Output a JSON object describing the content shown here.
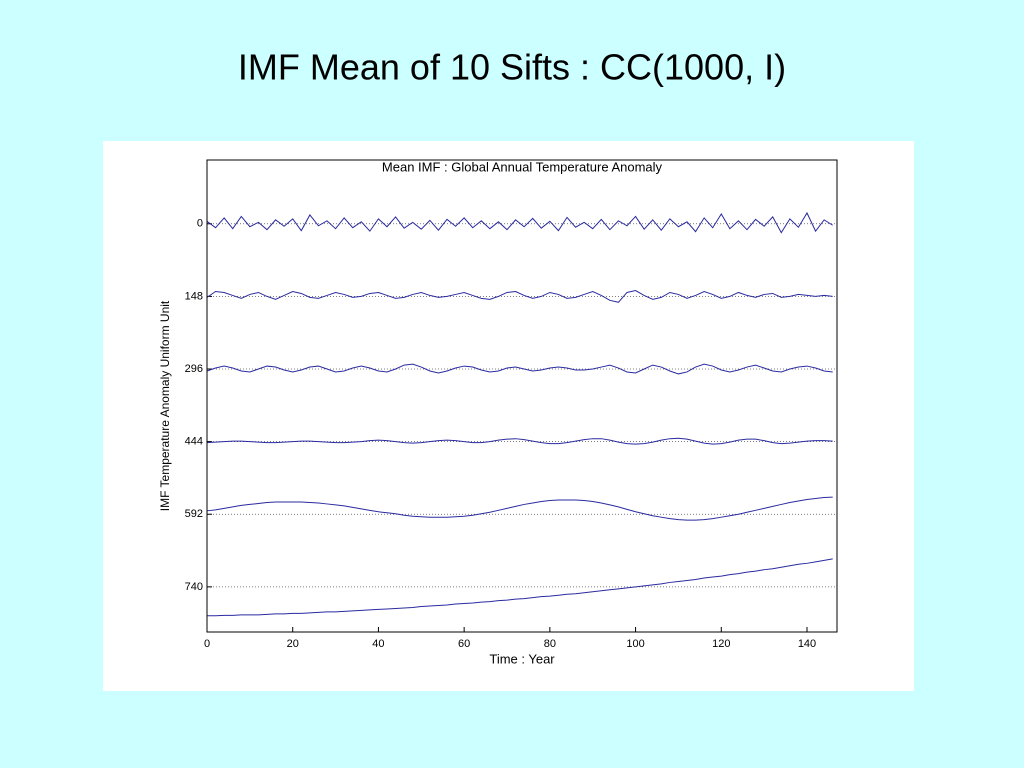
{
  "chart_data": {
    "type": "line",
    "page_title": "IMF Mean of 10 Sifts : CC(1000, I)",
    "title": "Mean IMF : Global Annual Temperature Anomaly",
    "xlabel": "Time : Year",
    "ylabel": "IMF Temperature Anomaly Uniform Unit",
    "xlim": [
      0,
      147
    ],
    "ylim": [
      -130,
      832
    ],
    "y_reversed": true,
    "xticks": [
      0,
      20,
      40,
      60,
      80,
      100,
      120,
      140
    ],
    "yticks": [
      0,
      148,
      296,
      444,
      592,
      740
    ],
    "grid": "y",
    "x": [
      0,
      2,
      4,
      6,
      8,
      10,
      12,
      14,
      16,
      18,
      20,
      22,
      24,
      26,
      28,
      30,
      32,
      34,
      36,
      38,
      40,
      42,
      44,
      46,
      48,
      50,
      52,
      54,
      56,
      58,
      60,
      62,
      64,
      66,
      68,
      70,
      72,
      74,
      76,
      78,
      80,
      82,
      84,
      86,
      88,
      90,
      92,
      94,
      96,
      98,
      100,
      102,
      104,
      106,
      108,
      110,
      112,
      114,
      116,
      118,
      120,
      122,
      124,
      126,
      128,
      130,
      132,
      134,
      136,
      138,
      140,
      142,
      144,
      146
    ],
    "series": [
      {
        "color": "#2a2aa0",
        "values": [
          -5,
          8,
          -12,
          10,
          -15,
          6,
          -3,
          12,
          -8,
          5,
          -10,
          14,
          -18,
          4,
          -6,
          10,
          -12,
          8,
          -4,
          15,
          -10,
          6,
          -14,
          9,
          -3,
          11,
          -7,
          13,
          -9,
          5,
          -12,
          8,
          -6,
          10,
          -4,
          12,
          -8,
          6,
          -11,
          9,
          -5,
          14,
          -13,
          7,
          -3,
          10,
          -9,
          12,
          -6,
          4,
          -15,
          11,
          -8,
          13,
          -10,
          6,
          -4,
          16,
          -12,
          8,
          -20,
          10,
          -6,
          12,
          -9,
          5,
          -14,
          18,
          -10,
          7,
          -22,
          15,
          -8,
          3
        ]
      },
      {
        "color": "#2a2aa0",
        "values": [
          150,
          138,
          140,
          146,
          152,
          144,
          140,
          148,
          154,
          146,
          138,
          142,
          150,
          152,
          146,
          140,
          144,
          150,
          148,
          142,
          140,
          146,
          152,
          150,
          144,
          140,
          146,
          150,
          148,
          144,
          140,
          146,
          152,
          154,
          148,
          140,
          138,
          146,
          152,
          148,
          140,
          144,
          152,
          150,
          144,
          138,
          146,
          156,
          160,
          140,
          136,
          146,
          154,
          150,
          140,
          144,
          152,
          146,
          138,
          144,
          152,
          148,
          140,
          146,
          150,
          144,
          142,
          150,
          148,
          144,
          146,
          148,
          146,
          148
        ]
      },
      {
        "color": "#2a2aa0",
        "values": [
          300,
          294,
          290,
          294,
          300,
          302,
          296,
          290,
          292,
          298,
          302,
          298,
          292,
          290,
          296,
          302,
          300,
          294,
          290,
          294,
          300,
          302,
          296,
          288,
          286,
          292,
          300,
          304,
          300,
          294,
          290,
          292,
          298,
          302,
          300,
          294,
          292,
          296,
          300,
          298,
          294,
          292,
          294,
          298,
          298,
          296,
          292,
          288,
          294,
          302,
          304,
          296,
          288,
          292,
          300,
          306,
          302,
          292,
          286,
          290,
          298,
          302,
          298,
          292,
          288,
          294,
          300,
          302,
          296,
          292,
          290,
          294,
          300,
          302
        ]
      },
      {
        "color": "#2a2aa0",
        "values": [
          446,
          445,
          444,
          443,
          443,
          444,
          445,
          446,
          446,
          445,
          444,
          443,
          443,
          444,
          445,
          446,
          446,
          445,
          444,
          442,
          441,
          442,
          444,
          446,
          447,
          446,
          444,
          442,
          441,
          442,
          444,
          446,
          446,
          444,
          441,
          439,
          438,
          440,
          443,
          446,
          448,
          448,
          446,
          443,
          440,
          438,
          438,
          441,
          445,
          448,
          449,
          448,
          445,
          441,
          438,
          437,
          439,
          443,
          447,
          449,
          448,
          445,
          441,
          439,
          439,
          442,
          446,
          448,
          447,
          445,
          443,
          442,
          442,
          443
        ]
      },
      {
        "color": "#2a2aa0",
        "values": [
          585,
          583,
          580,
          577,
          574,
          572,
          570,
          568,
          567,
          567,
          567,
          567,
          568,
          569,
          571,
          573,
          575,
          578,
          581,
          584,
          587,
          589,
          591,
          594,
          596,
          597,
          598,
          598,
          598,
          597,
          596,
          594,
          591,
          588,
          584,
          580,
          576,
          572,
          569,
          566,
          564,
          563,
          563,
          563,
          564,
          566,
          569,
          573,
          577,
          582,
          587,
          591,
          595,
          598,
          601,
          603,
          604,
          604,
          603,
          601,
          598,
          595,
          592,
          588,
          584,
          580,
          576,
          572,
          568,
          565,
          562,
          560,
          558,
          557
        ]
      },
      {
        "color": "#2a2aa0",
        "values": [
          799,
          799,
          798,
          798,
          797,
          797,
          797,
          796,
          795,
          795,
          794,
          794,
          793,
          792,
          791,
          791,
          790,
          789,
          788,
          787,
          786,
          785,
          784,
          783,
          782,
          780,
          779,
          778,
          777,
          775,
          774,
          773,
          771,
          770,
          768,
          767,
          765,
          764,
          762,
          760,
          759,
          757,
          755,
          754,
          752,
          750,
          748,
          746,
          744,
          742,
          740,
          738,
          736,
          734,
          731,
          729,
          727,
          725,
          722,
          720,
          718,
          715,
          713,
          710,
          708,
          705,
          703,
          700,
          697,
          694,
          692,
          689,
          686,
          683
        ]
      }
    ]
  }
}
